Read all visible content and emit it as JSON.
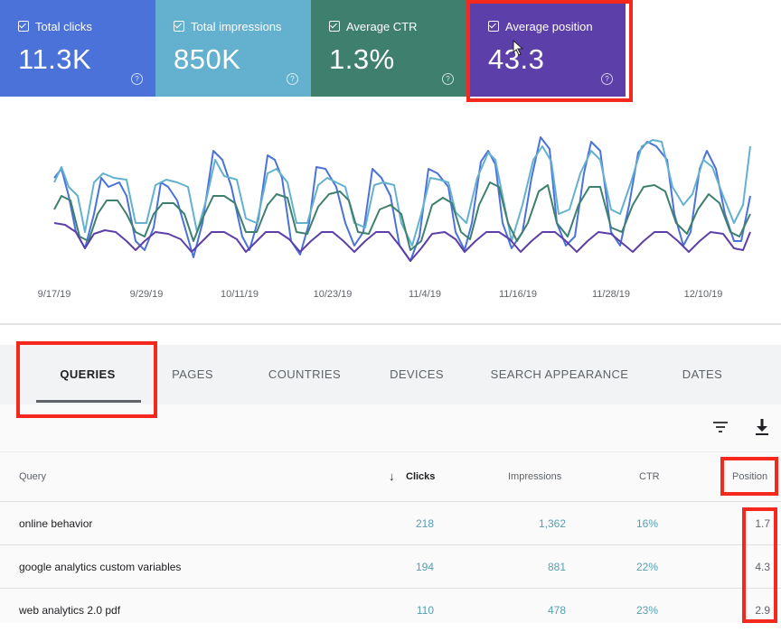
{
  "metrics": [
    {
      "label": "Total clicks",
      "value": "11.3K",
      "color": "#4a72d9",
      "checked": true
    },
    {
      "label": "Total impressions",
      "value": "850K",
      "color": "#63b1cf",
      "checked": true
    },
    {
      "label": "Average CTR",
      "value": "1.3%",
      "color": "#3f7f6e",
      "checked": true
    },
    {
      "label": "Average position",
      "value": "43.3",
      "color": "#5c3fa8",
      "checked": true
    }
  ],
  "help_glyph": "?",
  "chart_data": {
    "type": "line",
    "x_ticks": [
      "9/17/19",
      "9/29/19",
      "10/11/19",
      "10/23/19",
      "11/4/19",
      "11/16/19",
      "11/28/19",
      "12/10/19"
    ],
    "series_colors": [
      "#4a72d9",
      "#63b1cf",
      "#3f7f6e",
      "#5c3fa8"
    ],
    "y_axis": "unlabeled",
    "grid": false
  },
  "tabs": [
    "QUERIES",
    "PAGES",
    "COUNTRIES",
    "DEVICES",
    "SEARCH APPEARANCE",
    "DATES"
  ],
  "active_tab": "QUERIES",
  "toolbar": {
    "filter_icon": "filter-icon",
    "download_icon": "download-icon"
  },
  "table": {
    "headers": {
      "query": "Query",
      "clicks": "Clicks",
      "impressions": "Impressions",
      "ctr": "CTR",
      "position": "Position"
    },
    "sort_arrow": "↓",
    "rows": [
      {
        "query": "online behavior",
        "clicks": "218",
        "impressions": "1,362",
        "ctr": "16%",
        "position": "1.7"
      },
      {
        "query": "google analytics custom variables",
        "clicks": "194",
        "impressions": "881",
        "ctr": "22%",
        "position": "4.3"
      },
      {
        "query": "web analytics 2.0 pdf",
        "clicks": "110",
        "impressions": "478",
        "ctr": "23%",
        "position": "2.9"
      }
    ]
  }
}
